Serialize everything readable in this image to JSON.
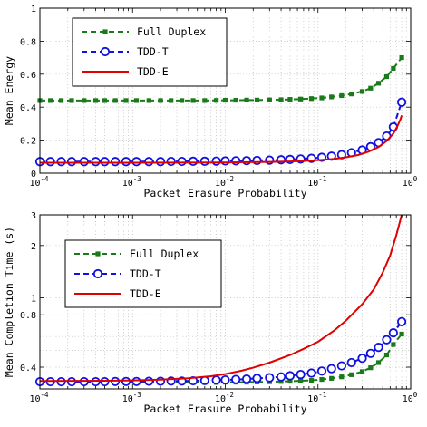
{
  "chart_data": [
    {
      "type": "line",
      "xlabel": "Packet Erasure Probability",
      "ylabel": "Mean Energy",
      "xscale": "log",
      "xlim": [
        0.0001,
        1
      ],
      "ylim": [
        0,
        1
      ],
      "grid": true,
      "legend_position": "top-left",
      "x_ticks": [
        {
          "value": 0.0001,
          "base": "10",
          "exp": "-4"
        },
        {
          "value": 0.001,
          "base": "10",
          "exp": "-3"
        },
        {
          "value": 0.01,
          "base": "10",
          "exp": "-2"
        },
        {
          "value": 0.1,
          "base": "10",
          "exp": "-1"
        },
        {
          "value": 1,
          "base": "10",
          "exp": "0"
        }
      ],
      "y_ticks": [
        {
          "value": 0,
          "label": "0"
        },
        {
          "value": 0.2,
          "label": "0.2"
        },
        {
          "value": 0.4,
          "label": "0.4"
        },
        {
          "value": 0.6,
          "label": "0.6"
        },
        {
          "value": 0.8,
          "label": "0.8"
        },
        {
          "value": 1,
          "label": "1"
        }
      ],
      "series": [
        {
          "name": "Full Duplex",
          "color": "#1a7a1a",
          "style": "dashed",
          "marker": "square",
          "points": [
            [
              0.0001,
              0.44
            ],
            [
              0.00013,
              0.44
            ],
            [
              0.00017,
              0.44
            ],
            [
              0.00022,
              0.44
            ],
            [
              0.0003,
              0.44
            ],
            [
              0.0004,
              0.44
            ],
            [
              0.0005,
              0.44
            ],
            [
              0.00065,
              0.44
            ],
            [
              0.00085,
              0.44
            ],
            [
              0.0011,
              0.44
            ],
            [
              0.0015,
              0.44
            ],
            [
              0.002,
              0.44
            ],
            [
              0.0026,
              0.44
            ],
            [
              0.0034,
              0.44
            ],
            [
              0.0045,
              0.44
            ],
            [
              0.006,
              0.44
            ],
            [
              0.008,
              0.441
            ],
            [
              0.01,
              0.442
            ],
            [
              0.013,
              0.442
            ],
            [
              0.017,
              0.443
            ],
            [
              0.022,
              0.443
            ],
            [
              0.03,
              0.444
            ],
            [
              0.04,
              0.445
            ],
            [
              0.05,
              0.447
            ],
            [
              0.065,
              0.449
            ],
            [
              0.085,
              0.452
            ],
            [
              0.11,
              0.456
            ],
            [
              0.14,
              0.462
            ],
            [
              0.18,
              0.47
            ],
            [
              0.23,
              0.48
            ],
            [
              0.3,
              0.495
            ],
            [
              0.37,
              0.515
            ],
            [
              0.45,
              0.545
            ],
            [
              0.55,
              0.585
            ],
            [
              0.65,
              0.635
            ],
            [
              0.8,
              0.7
            ]
          ]
        },
        {
          "name": "TDD-T",
          "color": "#1010e0",
          "style": "dashed",
          "marker": "circle",
          "points": [
            [
              0.0001,
              0.07
            ],
            [
              0.00013,
              0.07
            ],
            [
              0.00017,
              0.07
            ],
            [
              0.00022,
              0.07
            ],
            [
              0.0003,
              0.07
            ],
            [
              0.0004,
              0.07
            ],
            [
              0.0005,
              0.07
            ],
            [
              0.00065,
              0.07
            ],
            [
              0.00085,
              0.07
            ],
            [
              0.0011,
              0.07
            ],
            [
              0.0015,
              0.07
            ],
            [
              0.002,
              0.07
            ],
            [
              0.0026,
              0.071
            ],
            [
              0.0034,
              0.071
            ],
            [
              0.0045,
              0.072
            ],
            [
              0.006,
              0.072
            ],
            [
              0.008,
              0.073
            ],
            [
              0.01,
              0.074
            ],
            [
              0.013,
              0.075
            ],
            [
              0.017,
              0.076
            ],
            [
              0.022,
              0.077
            ],
            [
              0.03,
              0.079
            ],
            [
              0.04,
              0.081
            ],
            [
              0.05,
              0.083
            ],
            [
              0.065,
              0.086
            ],
            [
              0.085,
              0.09
            ],
            [
              0.11,
              0.096
            ],
            [
              0.14,
              0.103
            ],
            [
              0.18,
              0.112
            ],
            [
              0.23,
              0.124
            ],
            [
              0.3,
              0.14
            ],
            [
              0.37,
              0.16
            ],
            [
              0.45,
              0.185
            ],
            [
              0.55,
              0.225
            ],
            [
              0.65,
              0.28
            ],
            [
              0.8,
              0.43
            ]
          ]
        },
        {
          "name": "TDD-E",
          "color": "#e00000",
          "style": "solid",
          "marker": "none",
          "points": [
            [
              0.0001,
              0.063
            ],
            [
              0.001,
              0.063
            ],
            [
              0.01,
              0.065
            ],
            [
              0.03,
              0.068
            ],
            [
              0.05,
              0.071
            ],
            [
              0.08,
              0.075
            ],
            [
              0.11,
              0.08
            ],
            [
              0.15,
              0.086
            ],
            [
              0.2,
              0.096
            ],
            [
              0.27,
              0.11
            ],
            [
              0.35,
              0.13
            ],
            [
              0.45,
              0.158
            ],
            [
              0.55,
              0.195
            ],
            [
              0.65,
              0.24
            ],
            [
              0.72,
              0.285
            ],
            [
              0.78,
              0.33
            ],
            [
              0.8,
              0.35
            ]
          ]
        }
      ]
    },
    {
      "type": "line",
      "xlabel": "Packet Erasure Probability",
      "ylabel": "Mean Completion Time (s)",
      "xscale": "log",
      "yscale": "log",
      "xlim": [
        0.0001,
        1
      ],
      "ylim": [
        0.3,
        3
      ],
      "grid": true,
      "legend_position": "top-left",
      "x_ticks": [
        {
          "value": 0.0001,
          "base": "10",
          "exp": "-4"
        },
        {
          "value": 0.001,
          "base": "10",
          "exp": "-3"
        },
        {
          "value": 0.01,
          "base": "10",
          "exp": "-2"
        },
        {
          "value": 0.1,
          "base": "10",
          "exp": "-1"
        },
        {
          "value": 1,
          "base": "10",
          "exp": "0"
        }
      ],
      "y_ticks": [
        {
          "value": 0.4,
          "label": "0.4"
        },
        {
          "value": 0.8,
          "label": "0.8"
        },
        {
          "value": 1,
          "label": "1"
        },
        {
          "value": 2,
          "label": "2"
        },
        {
          "value": 3,
          "label": "3"
        }
      ],
      "series": [
        {
          "name": "Full Duplex",
          "color": "#1a7a1a",
          "style": "dashed",
          "marker": "square",
          "points": [
            [
              0.0001,
              0.327
            ],
            [
              0.00013,
              0.327
            ],
            [
              0.00017,
              0.327
            ],
            [
              0.00022,
              0.327
            ],
            [
              0.0003,
              0.327
            ],
            [
              0.0004,
              0.327
            ],
            [
              0.0005,
              0.327
            ],
            [
              0.00065,
              0.327
            ],
            [
              0.00085,
              0.327
            ],
            [
              0.0011,
              0.327
            ],
            [
              0.0015,
              0.327
            ],
            [
              0.002,
              0.327
            ],
            [
              0.0026,
              0.327
            ],
            [
              0.0034,
              0.327
            ],
            [
              0.0045,
              0.327
            ],
            [
              0.006,
              0.327
            ],
            [
              0.008,
              0.327
            ],
            [
              0.01,
              0.328
            ],
            [
              0.013,
              0.328
            ],
            [
              0.017,
              0.328
            ],
            [
              0.022,
              0.329
            ],
            [
              0.03,
              0.33
            ],
            [
              0.04,
              0.331
            ],
            [
              0.05,
              0.332
            ],
            [
              0.065,
              0.334
            ],
            [
              0.085,
              0.336
            ],
            [
              0.11,
              0.34
            ],
            [
              0.14,
              0.345
            ],
            [
              0.18,
              0.352
            ],
            [
              0.23,
              0.362
            ],
            [
              0.3,
              0.377
            ],
            [
              0.37,
              0.397
            ],
            [
              0.45,
              0.425
            ],
            [
              0.55,
              0.47
            ],
            [
              0.65,
              0.54
            ],
            [
              0.8,
              0.62
            ]
          ]
        },
        {
          "name": "TDD-T",
          "color": "#1010e0",
          "style": "dashed",
          "marker": "circle",
          "points": [
            [
              0.0001,
              0.33
            ],
            [
              0.00013,
              0.33
            ],
            [
              0.00017,
              0.33
            ],
            [
              0.00022,
              0.33
            ],
            [
              0.0003,
              0.33
            ],
            [
              0.0004,
              0.33
            ],
            [
              0.0005,
              0.33
            ],
            [
              0.00065,
              0.331
            ],
            [
              0.00085,
              0.331
            ],
            [
              0.0011,
              0.331
            ],
            [
              0.0015,
              0.332
            ],
            [
              0.002,
              0.332
            ],
            [
              0.0026,
              0.333
            ],
            [
              0.0034,
              0.333
            ],
            [
              0.0045,
              0.334
            ],
            [
              0.006,
              0.335
            ],
            [
              0.008,
              0.337
            ],
            [
              0.01,
              0.338
            ],
            [
              0.013,
              0.34
            ],
            [
              0.017,
              0.342
            ],
            [
              0.022,
              0.345
            ],
            [
              0.03,
              0.348
            ],
            [
              0.04,
              0.352
            ],
            [
              0.05,
              0.357
            ],
            [
              0.065,
              0.363
            ],
            [
              0.085,
              0.37
            ],
            [
              0.11,
              0.38
            ],
            [
              0.14,
              0.392
            ],
            [
              0.18,
              0.407
            ],
            [
              0.23,
              0.425
            ],
            [
              0.3,
              0.45
            ],
            [
              0.37,
              0.48
            ],
            [
              0.45,
              0.52
            ],
            [
              0.55,
              0.575
            ],
            [
              0.65,
              0.63
            ],
            [
              0.8,
              0.73
            ]
          ]
        },
        {
          "name": "TDD-E",
          "color": "#e00000",
          "style": "solid",
          "marker": "none",
          "points": [
            [
              0.0001,
              0.333
            ],
            [
              0.0005,
              0.334
            ],
            [
              0.001,
              0.336
            ],
            [
              0.002,
              0.339
            ],
            [
              0.004,
              0.345
            ],
            [
              0.007,
              0.355
            ],
            [
              0.01,
              0.365
            ],
            [
              0.015,
              0.382
            ],
            [
              0.02,
              0.397
            ],
            [
              0.03,
              0.425
            ],
            [
              0.05,
              0.47
            ],
            [
              0.07,
              0.51
            ],
            [
              0.1,
              0.56
            ],
            [
              0.15,
              0.65
            ],
            [
              0.2,
              0.74
            ],
            [
              0.3,
              0.92
            ],
            [
              0.4,
              1.12
            ],
            [
              0.5,
              1.4
            ],
            [
              0.6,
              1.75
            ],
            [
              0.7,
              2.3
            ],
            [
              0.78,
              2.85
            ],
            [
              0.8,
              3.0
            ]
          ]
        }
      ]
    }
  ]
}
